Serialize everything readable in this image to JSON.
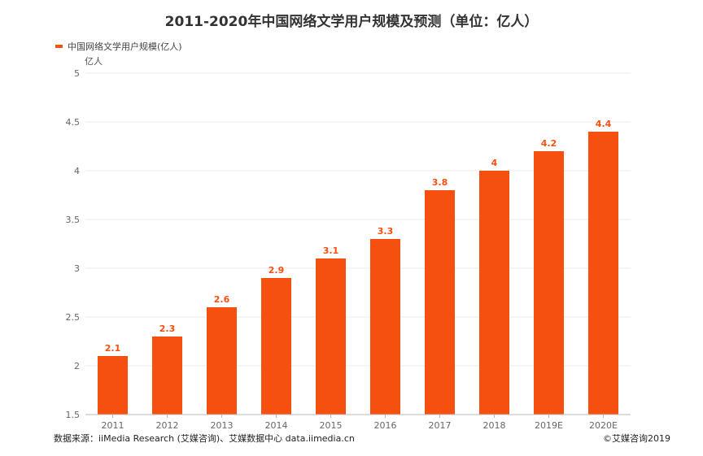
{
  "chart_data": {
    "type": "bar",
    "title": "2011-2020年中国网络文学用户规模及预测（单位：亿人）",
    "legend": "中国网络文学用户规模(亿人)",
    "ylabel": "亿人",
    "xlabel": "",
    "categories": [
      "2011",
      "2012",
      "2013",
      "2014",
      "2015",
      "2016",
      "2017",
      "2018",
      "2019E",
      "2020E"
    ],
    "values": [
      2.1,
      2.3,
      2.6,
      2.9,
      3.1,
      3.3,
      3.8,
      4,
      4.2,
      4.4
    ],
    "data_labels": [
      "2.1",
      "2.3",
      "2.6",
      "2.9",
      "3.1",
      "3.3",
      "3.8",
      "4",
      "4.2",
      "4.4"
    ],
    "ylim": [
      1.5,
      5
    ],
    "yticks": [
      "1.5",
      "2",
      "2.5",
      "3",
      "3.5",
      "4",
      "4.5",
      "5"
    ],
    "grid": true,
    "legend_position": "top-left",
    "bar_color": "#f5500f",
    "label_color": "#f5500f"
  },
  "footer": {
    "source": "数据来源：iiMedia Research (艾媒咨询)、艾媒数据中心 data.iimedia.cn",
    "copyright": "©艾媒咨询2019"
  }
}
